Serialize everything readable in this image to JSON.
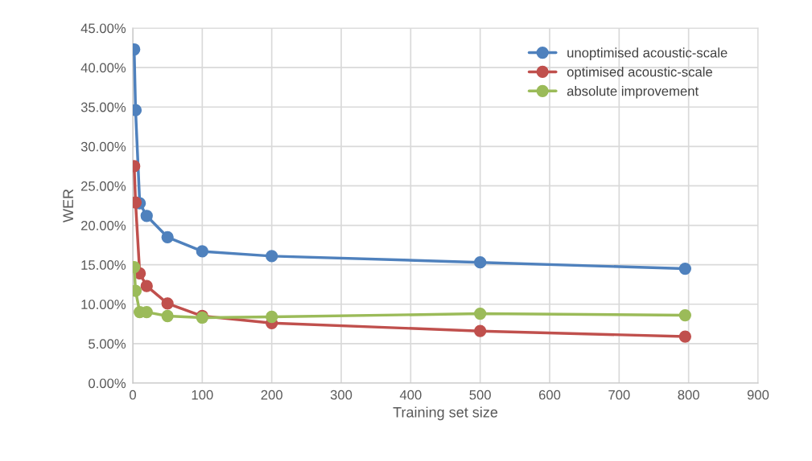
{
  "chart_data": {
    "type": "line",
    "xlabel": "Training set size",
    "ylabel": "WER",
    "x": [
      2,
      4,
      10,
      20,
      50,
      100,
      200,
      500,
      795
    ],
    "series": [
      {
        "name": "unoptimised acoustic-scale",
        "color": "#4f81bd",
        "values": [
          42.3,
          34.6,
          22.8,
          21.2,
          18.5,
          16.7,
          16.1,
          15.3,
          14.5
        ]
      },
      {
        "name": "optimised acoustic-scale",
        "color": "#c0504d",
        "values": [
          27.5,
          22.9,
          13.9,
          12.3,
          10.1,
          8.5,
          7.6,
          6.6,
          5.9
        ]
      },
      {
        "name": "absolute improvement",
        "color": "#9bbb59",
        "values": [
          14.7,
          11.7,
          9.0,
          9.0,
          8.5,
          8.3,
          8.4,
          8.8,
          8.6
        ]
      }
    ],
    "xlim": [
      0,
      900
    ],
    "xticks": [
      0,
      100,
      200,
      300,
      400,
      500,
      600,
      700,
      800,
      900
    ],
    "ylim": [
      0,
      45
    ],
    "yticks": [
      {
        "value": 0,
        "label": "0.00%"
      },
      {
        "value": 5,
        "label": "5.00%"
      },
      {
        "value": 10,
        "label": "10.00%"
      },
      {
        "value": 15,
        "label": "15.00%"
      },
      {
        "value": 20,
        "label": "20.00%"
      },
      {
        "value": 25,
        "label": "25.00%"
      },
      {
        "value": 30,
        "label": "30.00%"
      },
      {
        "value": 35,
        "label": "35.00%"
      },
      {
        "value": 40,
        "label": "40.00%"
      },
      {
        "value": 45,
        "label": "45.00%"
      }
    ],
    "grid": true,
    "legend": "top right",
    "marker": "circle",
    "line_style": "solid"
  }
}
